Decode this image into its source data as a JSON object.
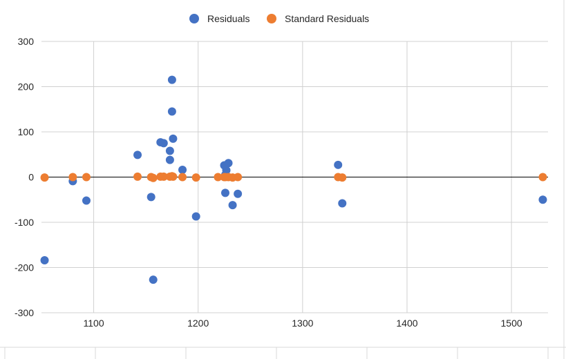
{
  "chart_data": {
    "type": "scatter",
    "title": "",
    "xlabel": "",
    "ylabel": "",
    "xlim": [
      1050,
      1535
    ],
    "ylim": [
      -300,
      300
    ],
    "x_ticks": [
      1100,
      1200,
      1300,
      1400,
      1500
    ],
    "y_ticks": [
      -300,
      -200,
      -100,
      0,
      100,
      200,
      300
    ],
    "grid": true,
    "legend_position": "top",
    "series": [
      {
        "name": "Residuals",
        "color": "#4472C4",
        "points": [
          {
            "x": 1053,
            "y": -184
          },
          {
            "x": 1080,
            "y": -9
          },
          {
            "x": 1093,
            "y": -52
          },
          {
            "x": 1142,
            "y": 49
          },
          {
            "x": 1155,
            "y": -44
          },
          {
            "x": 1157,
            "y": -227
          },
          {
            "x": 1164,
            "y": 77
          },
          {
            "x": 1167,
            "y": 75
          },
          {
            "x": 1173,
            "y": 58
          },
          {
            "x": 1173,
            "y": 38
          },
          {
            "x": 1175,
            "y": 215
          },
          {
            "x": 1175,
            "y": 145
          },
          {
            "x": 1176,
            "y": 85
          },
          {
            "x": 1185,
            "y": 16
          },
          {
            "x": 1198,
            "y": -87
          },
          {
            "x": 1225,
            "y": 26
          },
          {
            "x": 1226,
            "y": 5
          },
          {
            "x": 1226,
            "y": -35
          },
          {
            "x": 1227,
            "y": 15
          },
          {
            "x": 1229,
            "y": 31
          },
          {
            "x": 1233,
            "y": -62
          },
          {
            "x": 1238,
            "y": -37
          },
          {
            "x": 1334,
            "y": 27
          },
          {
            "x": 1338,
            "y": -58
          },
          {
            "x": 1530,
            "y": -50
          }
        ]
      },
      {
        "name": "Standard Residuals",
        "color": "#ED7D31",
        "points": [
          {
            "x": 1053,
            "y": -1
          },
          {
            "x": 1080,
            "y": 0
          },
          {
            "x": 1093,
            "y": 0
          },
          {
            "x": 1142,
            "y": 1
          },
          {
            "x": 1155,
            "y": 0
          },
          {
            "x": 1157,
            "y": -2
          },
          {
            "x": 1164,
            "y": 1
          },
          {
            "x": 1167,
            "y": 1
          },
          {
            "x": 1173,
            "y": 1
          },
          {
            "x": 1175,
            "y": 2
          },
          {
            "x": 1176,
            "y": 1
          },
          {
            "x": 1185,
            "y": 0
          },
          {
            "x": 1198,
            "y": -1
          },
          {
            "x": 1219,
            "y": 0
          },
          {
            "x": 1225,
            "y": 0
          },
          {
            "x": 1226,
            "y": 0
          },
          {
            "x": 1229,
            "y": 0
          },
          {
            "x": 1233,
            "y": -1
          },
          {
            "x": 1238,
            "y": 0
          },
          {
            "x": 1334,
            "y": 0
          },
          {
            "x": 1338,
            "y": -1
          },
          {
            "x": 1530,
            "y": 0
          }
        ]
      }
    ]
  }
}
